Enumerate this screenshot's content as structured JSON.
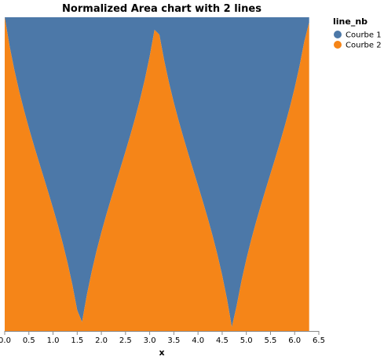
{
  "chart_data": {
    "type": "area",
    "stacked": "normalize",
    "title": "Normalized Area chart with 2 lines",
    "xlabel": "x",
    "ylabel": "",
    "xlim": [
      0,
      6.5
    ],
    "ylim": [
      0,
      1
    ],
    "x_ticks": [
      "0.0",
      "0.5",
      "1.0",
      "1.5",
      "2.0",
      "2.5",
      "3.0",
      "3.5",
      "4.0",
      "4.5",
      "5.0",
      "5.5",
      "6.0",
      "6.5"
    ],
    "legend": {
      "title": "line_nb",
      "position": "top-right"
    },
    "series": [
      {
        "name": "Courbe 1",
        "color": "#4c78a8",
        "formula": "sin(x)"
      },
      {
        "name": "Courbe 2",
        "color": "#f58518",
        "formula": "cos(x)"
      }
    ],
    "x_range": {
      "start": 0,
      "end": 6.3,
      "step": 0.1
    }
  }
}
